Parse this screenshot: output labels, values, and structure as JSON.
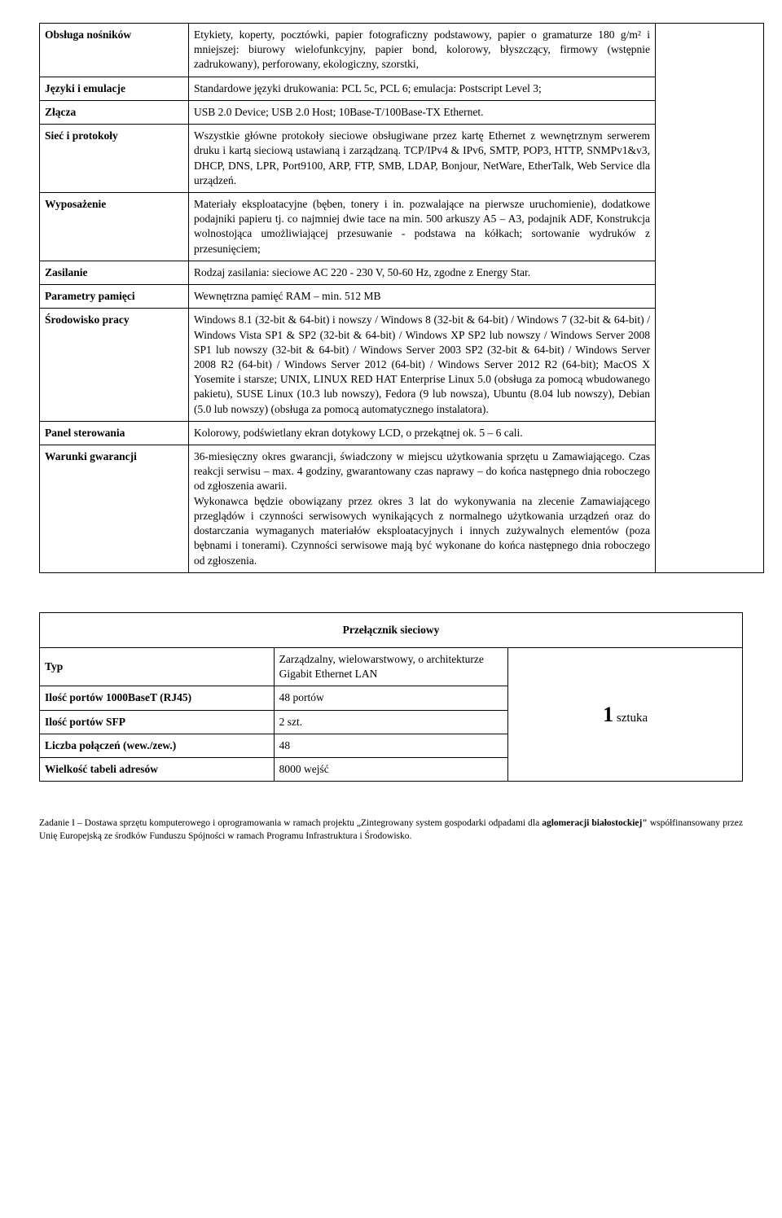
{
  "rows": [
    {
      "label": "Obsługa nośników",
      "value": "Etykiety, koperty, pocztówki, papier fotograficzny podstawowy, papier o gramaturze 180 g/m² i mniejszej: biurowy wielofunkcyjny, papier bond, kolorowy, błyszczący, firmowy (wstępnie zadrukowany), perforowany, ekologiczny, szorstki,"
    },
    {
      "label": "Języki i emulacje",
      "value": "Standardowe języki drukowania: PCL 5c, PCL 6; emulacja: Postscript Level 3;"
    },
    {
      "label": "Złącza",
      "value": " USB 2.0 Device; USB 2.0 Host; 10Base-T/100Base-TX Ethernet."
    },
    {
      "label": "Sieć i protokoły",
      "value": "Wszystkie główne protokoły sieciowe obsługiwane przez kartę Ethernet z wewnętrznym serwerem druku i kartą sieciową ustawianą i zarządzaną. TCP/IPv4 & IPv6, SMTP, POP3, HTTP, SNMPv1&v3, DHCP, DNS, LPR, Port9100, ARP, FTP, SMB, LDAP, Bonjour, NetWare, EtherTalk, Web Service dla urządzeń."
    },
    {
      "label": "Wyposażenie",
      "value": "Materiały eksploatacyjne (bęben, tonery i in. pozwalające na pierwsze uruchomienie), dodatkowe podajniki papieru tj. co najmniej dwie tace na min. 500 arkuszy A5 – A3, podajnik ADF, Konstrukcja wolnostojąca umożliwiającej przesuwanie - podstawa na kółkach; sortowanie wydruków z przesunięciem;"
    },
    {
      "label": "Zasilanie",
      "value": "Rodzaj zasilania: sieciowe AC 220 - 230 V, 50-60 Hz, zgodne z Energy Star."
    },
    {
      "label": "Parametry pamięci",
      "value": "Wewnętrzna pamięć RAM – min. 512 MB"
    },
    {
      "label": "Środowisko pracy",
      "value": "Windows 8.1 (32-bit & 64-bit) i nowszy / Windows 8 (32-bit & 64-bit) / Windows 7 (32-bit & 64-bit) / Windows Vista SP1 & SP2 (32-bit & 64-bit) / Windows XP SP2 lub nowszy / Windows Server 2008 SP1 lub nowszy (32-bit & 64-bit) / Windows Server 2003 SP2 (32-bit & 64-bit) / Windows Server 2008 R2 (64-bit) / Windows Server 2012 (64-bit) / Windows Server 2012 R2 (64-bit); MacOS X Yosemite i starsze; UNIX, LINUX RED HAT Enterprise Linux 5.0 (obsługa za pomocą wbudowanego pakietu), SUSE Linux (10.3 lub nowszy), Fedora (9 lub nowsza), Ubuntu (8.04 lub nowszy), Debian (5.0 lub nowszy) (obsługa za pomocą automatycznego instalatora)."
    },
    {
      "label": "Panel sterowania",
      "value": "Kolorowy, podświetlany ekran dotykowy LCD, o przekątnej ok. 5 – 6 cali."
    },
    {
      "label": "Warunki gwarancji",
      "value": "36-miesięczny okres gwarancji, świadczony w miejscu użytkowania sprzętu u Zamawiającego. Czas reakcji serwisu – max. 4 godziny, gwarantowany czas naprawy – do końca następnego dnia roboczego od zgłoszenia awarii.\nWykonawca będzie obowiązany przez okres 3 lat do wykonywania na zlecenie Zamawiającego przeglądów i czynności serwisowych wynikających z normalnego użytkowania urządzeń oraz do dostarczania wymaganych materiałów eksploatacyjnych i innych zużywalnych elementów (poza bębnami i tonerami). Czynności serwisowe mają być wykonane do końca następnego dnia roboczego od zgłoszenia."
    }
  ],
  "table2": {
    "header": "Przełącznik sieciowy",
    "qty_big": "1",
    "qty_text": " sztuka",
    "rows": [
      {
        "label": "Typ",
        "value": "Zarządzalny, wielowarstwowy, o architekturze Gigabit Ethernet LAN"
      },
      {
        "label": "Ilość portów 1000BaseT (RJ45)",
        "value": "48 portów"
      },
      {
        "label": "Ilość portów SFP",
        "value": "2 szt."
      },
      {
        "label": "Liczba połączeń (wew./zew.)",
        "value": "48"
      },
      {
        "label": "Wielkość tabeli adresów",
        "value": "8000 wejść"
      }
    ]
  },
  "footer": {
    "line1a": "Zadanie I – Dostawa sprzętu komputerowego i oprogramowania  w ramach projektu „Zintegrowany system gospodarki odpadami dla ",
    "line1b": "aglomeracji białostockiej\"",
    "line1c": " współfinansowany przez Unię Europejską ze środków Funduszu Spójności w ramach Programu Infrastruktura i Środowisko."
  }
}
